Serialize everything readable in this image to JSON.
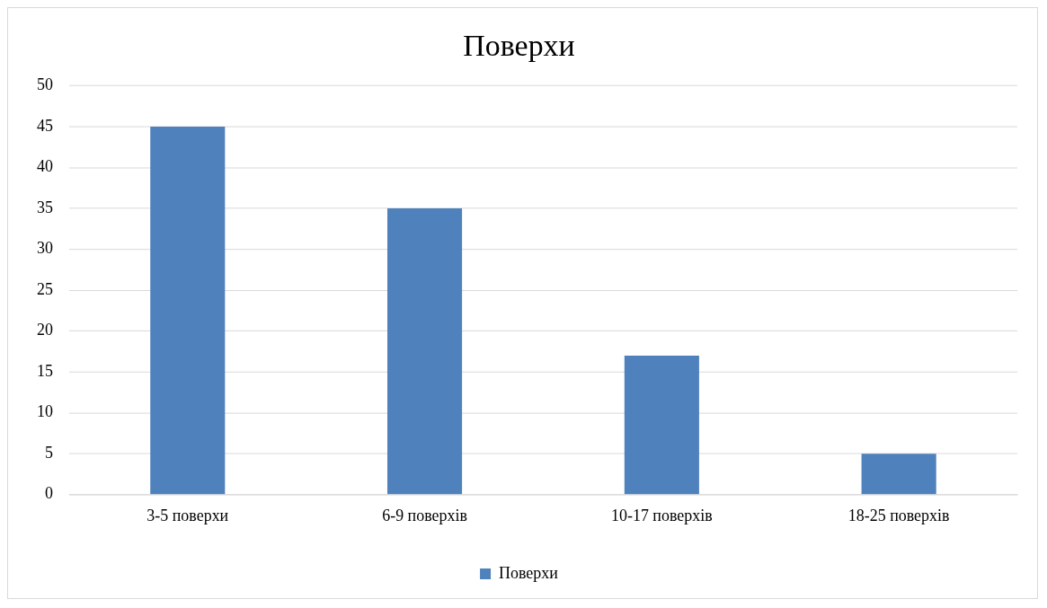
{
  "chart_data": {
    "type": "bar",
    "title": "Поверхи",
    "categories": [
      "3-5 поверхи",
      "6-9 поверхів",
      "10-17 поверхів",
      "18-25 поверхів"
    ],
    "series": [
      {
        "name": "Поверхи",
        "color": "#4f81bd",
        "values": [
          45,
          35,
          17,
          5
        ]
      }
    ],
    "ylim": [
      0,
      50
    ],
    "yticks": [
      0,
      5,
      10,
      15,
      20,
      25,
      30,
      35,
      40,
      45,
      50
    ],
    "grid": "y",
    "legend": "bottom"
  }
}
